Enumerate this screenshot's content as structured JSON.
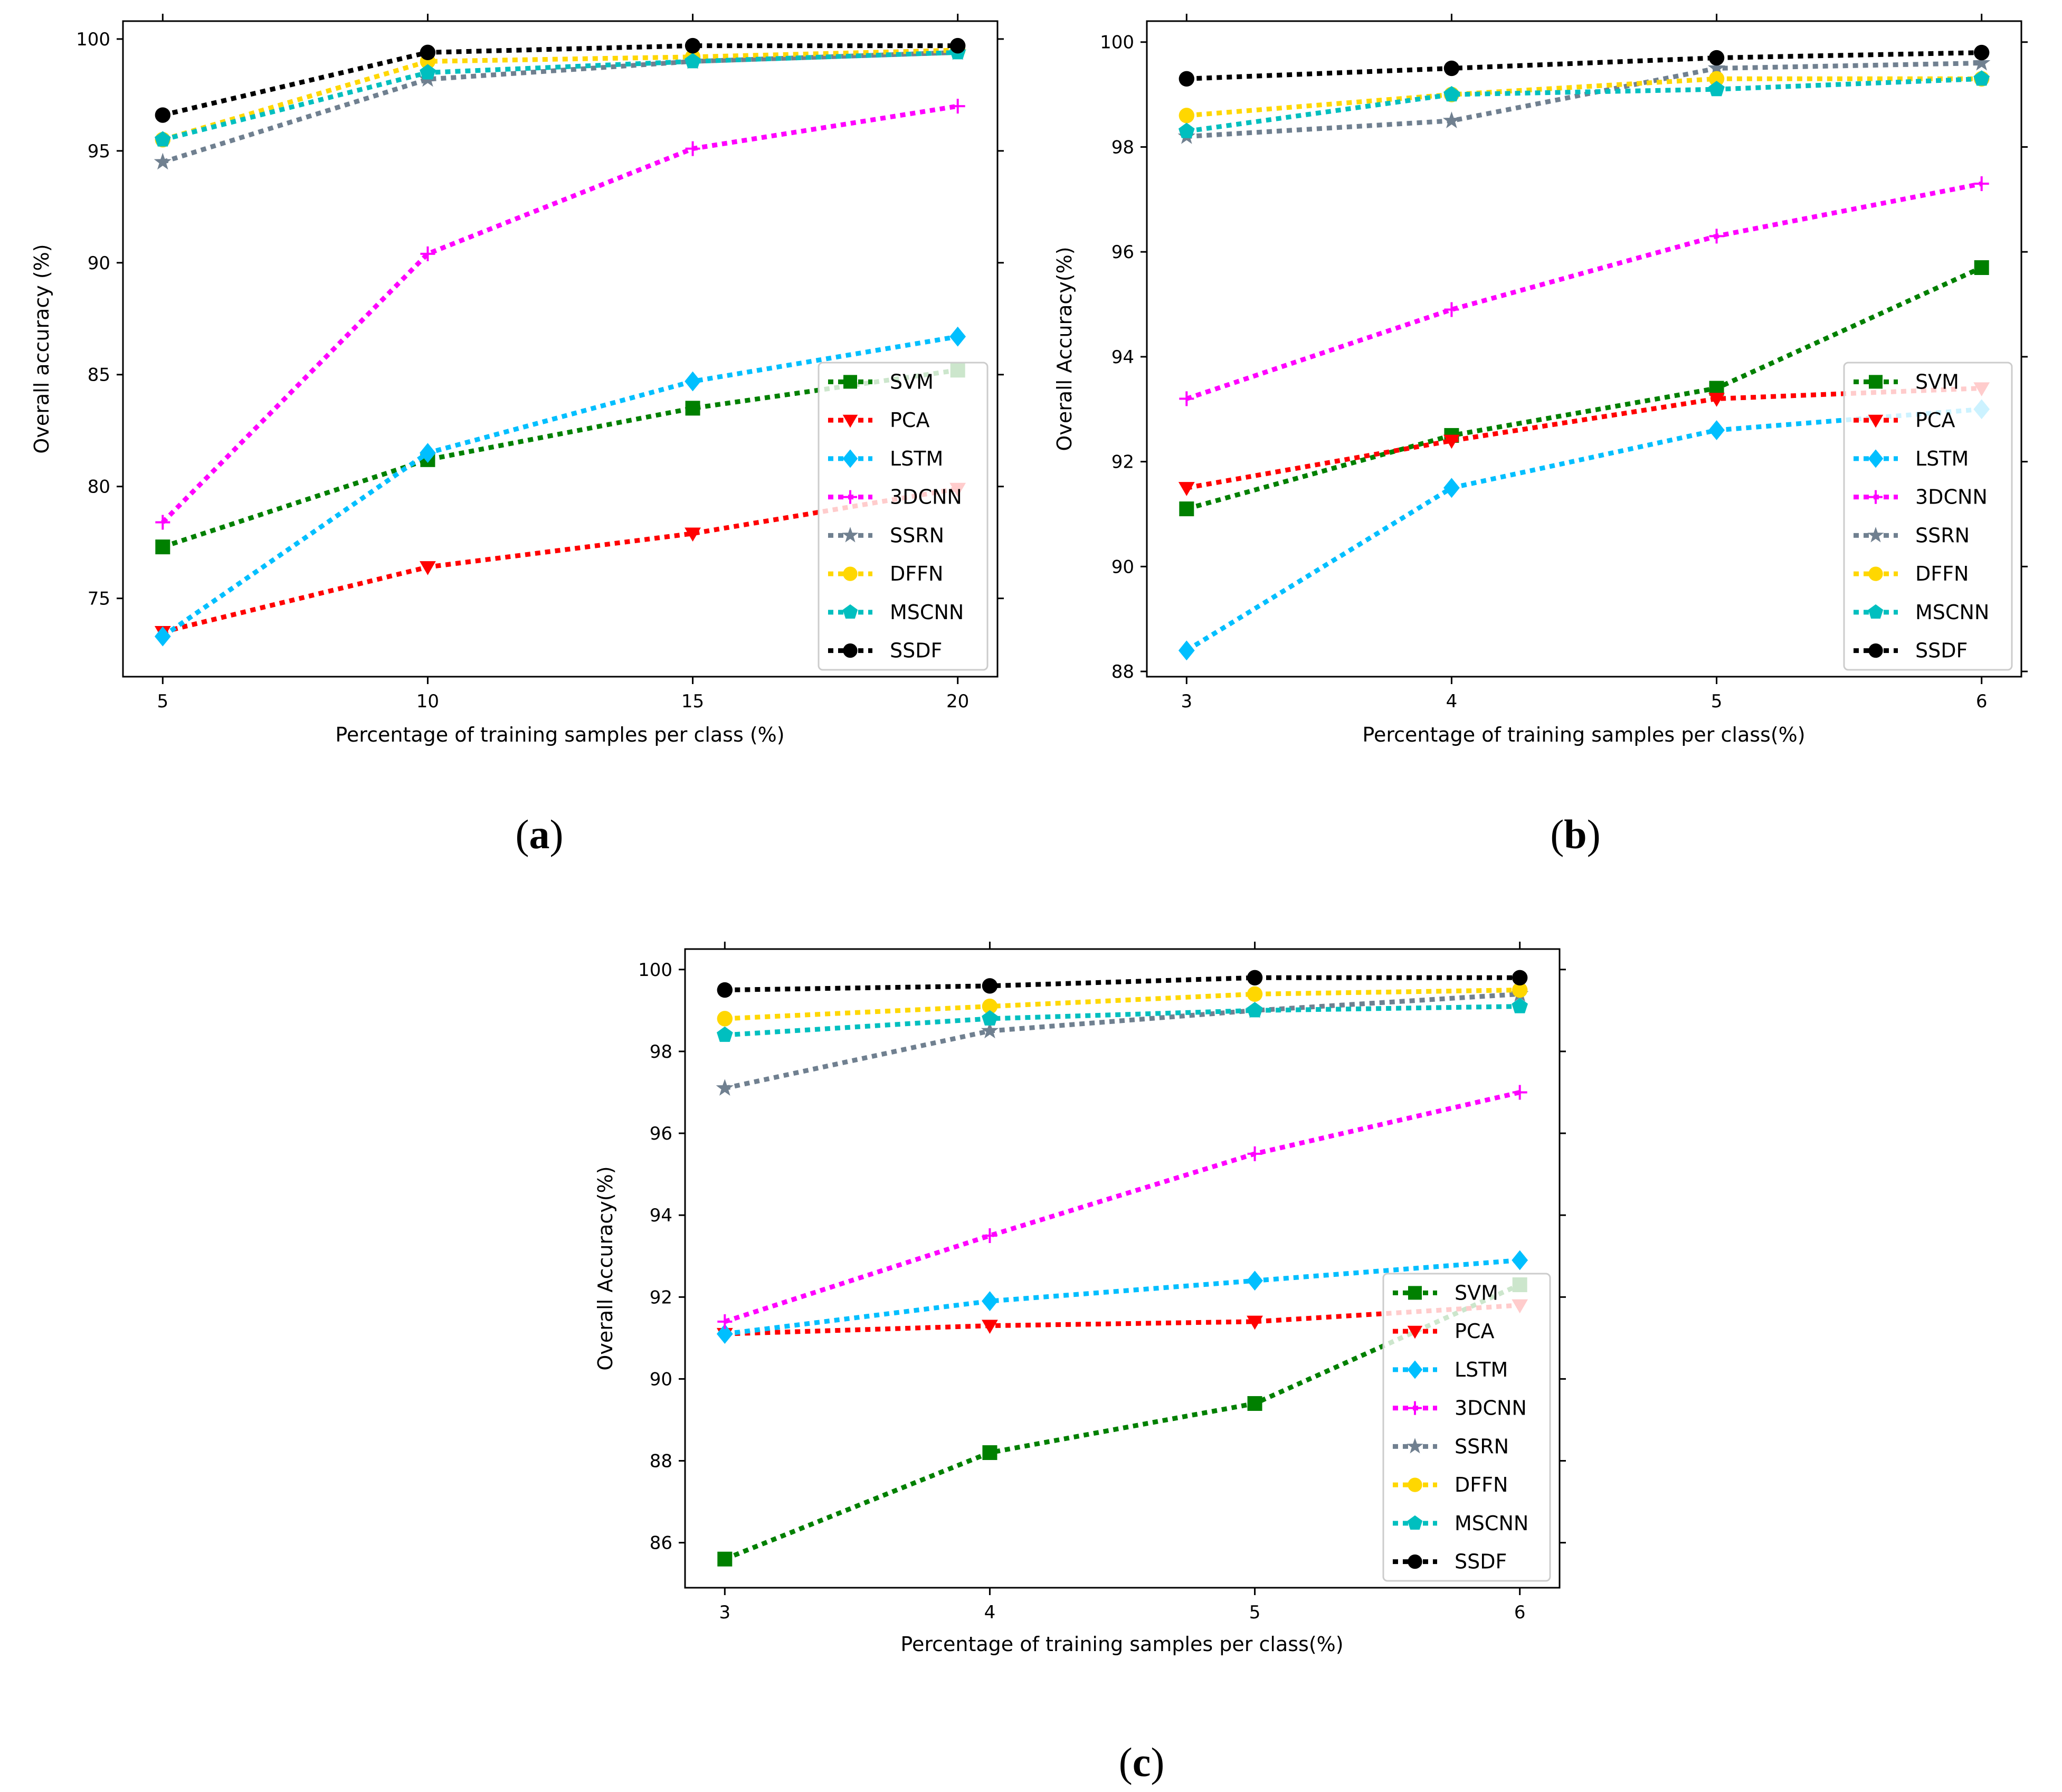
{
  "chart_data": [
    {
      "type": "line",
      "panel_label": "(a)",
      "panel_letter": "a",
      "xlabel": "Percentage of training samples per class (%)",
      "ylabel": "Overall accuracy (%)",
      "x": [
        5,
        10,
        15,
        20
      ],
      "xticks": [
        "5",
        "10",
        "15",
        "20"
      ],
      "xlim": [
        4.25,
        20.75
      ],
      "ylim": [
        71.5,
        100.8
      ],
      "yticks": [
        75,
        80,
        85,
        90,
        95,
        100
      ],
      "yticklabels": [
        "75",
        "80",
        "85",
        "90",
        "95",
        "100"
      ],
      "legend_loc": "lower-right",
      "series": [
        {
          "name": "SVM",
          "color": "#008000",
          "marker": "square",
          "values": [
            77.3,
            81.2,
            83.5,
            85.2
          ]
        },
        {
          "name": "PCA",
          "color": "#ff0000",
          "marker": "triangle-down",
          "values": [
            73.5,
            76.4,
            77.9,
            79.9
          ]
        },
        {
          "name": "LSTM",
          "color": "#00bfff",
          "marker": "diamond",
          "values": [
            73.3,
            81.5,
            84.7,
            86.7
          ]
        },
        {
          "name": "3DCNN",
          "color": "#ff00ff",
          "marker": "plus",
          "values": [
            78.4,
            90.4,
            95.1,
            97.0
          ]
        },
        {
          "name": "SSRN",
          "color": "#708090",
          "marker": "star",
          "values": [
            94.5,
            98.2,
            99.0,
            99.4
          ]
        },
        {
          "name": "DFFN",
          "color": "#ffd700",
          "marker": "circle",
          "values": [
            95.5,
            99.0,
            99.2,
            99.5
          ]
        },
        {
          "name": "MSCNN",
          "color": "#00bfbf",
          "marker": "pentagon",
          "values": [
            95.5,
            98.5,
            99.0,
            99.4
          ]
        },
        {
          "name": "SSDF",
          "color": "#000000",
          "marker": "circle",
          "values": [
            96.6,
            99.4,
            99.7,
            99.7
          ]
        }
      ]
    },
    {
      "type": "line",
      "panel_label": "(b)",
      "panel_letter": "b",
      "xlabel": "Percentage of training samples per class(%)",
      "ylabel": "Overall Accuracy(%)",
      "x": [
        3,
        4,
        5,
        6
      ],
      "xticks": [
        "3",
        "4",
        "5",
        "6"
      ],
      "xlim": [
        2.85,
        6.15
      ],
      "ylim": [
        87.9,
        100.4
      ],
      "yticks": [
        88,
        90,
        92,
        94,
        96,
        98,
        100
      ],
      "yticklabels": [
        "88",
        "90",
        "92",
        "94",
        "96",
        "98",
        "100"
      ],
      "legend_loc": "lower-right",
      "series": [
        {
          "name": "SVM",
          "color": "#008000",
          "marker": "square",
          "values": [
            91.1,
            92.5,
            93.4,
            95.7
          ]
        },
        {
          "name": "PCA",
          "color": "#ff0000",
          "marker": "triangle-down",
          "values": [
            91.5,
            92.4,
            93.2,
            93.4
          ]
        },
        {
          "name": "LSTM",
          "color": "#00bfff",
          "marker": "diamond",
          "values": [
            88.4,
            91.5,
            92.6,
            93.0
          ]
        },
        {
          "name": "3DCNN",
          "color": "#ff00ff",
          "marker": "plus",
          "values": [
            93.2,
            94.9,
            96.3,
            97.3
          ]
        },
        {
          "name": "SSRN",
          "color": "#708090",
          "marker": "star",
          "values": [
            98.2,
            98.5,
            99.5,
            99.6
          ]
        },
        {
          "name": "DFFN",
          "color": "#ffd700",
          "marker": "circle",
          "values": [
            98.6,
            99.0,
            99.3,
            99.3
          ]
        },
        {
          "name": "MSCNN",
          "color": "#00bfbf",
          "marker": "pentagon",
          "values": [
            98.3,
            99.0,
            99.1,
            99.3
          ]
        },
        {
          "name": "SSDF",
          "color": "#000000",
          "marker": "circle",
          "values": [
            99.3,
            99.5,
            99.7,
            99.8
          ]
        }
      ]
    },
    {
      "type": "line",
      "panel_label": "(c)",
      "panel_letter": "c",
      "xlabel": "Percentage of training samples per class(%)",
      "ylabel": "Overall Accuracy(%)",
      "x": [
        3,
        4,
        5,
        6
      ],
      "xticks": [
        "3",
        "4",
        "5",
        "6"
      ],
      "xlim": [
        2.85,
        6.15
      ],
      "ylim": [
        84.9,
        100.5
      ],
      "yticks": [
        86,
        88,
        90,
        92,
        94,
        96,
        98,
        100
      ],
      "yticklabels": [
        "86",
        "88",
        "90",
        "92",
        "94",
        "96",
        "98",
        "100"
      ],
      "legend_loc": "lower-right",
      "series": [
        {
          "name": "SVM",
          "color": "#008000",
          "marker": "square",
          "values": [
            85.6,
            88.2,
            89.4,
            92.3
          ]
        },
        {
          "name": "PCA",
          "color": "#ff0000",
          "marker": "triangle-down",
          "values": [
            91.1,
            91.3,
            91.4,
            91.8
          ]
        },
        {
          "name": "LSTM",
          "color": "#00bfff",
          "marker": "diamond",
          "values": [
            91.1,
            91.9,
            92.4,
            92.9
          ]
        },
        {
          "name": "3DCNN",
          "color": "#ff00ff",
          "marker": "plus",
          "values": [
            91.4,
            93.5,
            95.5,
            97.0
          ]
        },
        {
          "name": "SSRN",
          "color": "#708090",
          "marker": "star",
          "values": [
            97.1,
            98.5,
            99.0,
            99.4
          ]
        },
        {
          "name": "DFFN",
          "color": "#ffd700",
          "marker": "circle",
          "values": [
            98.8,
            99.1,
            99.4,
            99.5
          ]
        },
        {
          "name": "MSCNN",
          "color": "#00bfbf",
          "marker": "pentagon",
          "values": [
            98.4,
            98.8,
            99.0,
            99.1
          ]
        },
        {
          "name": "SSDF",
          "color": "#000000",
          "marker": "circle",
          "values": [
            99.5,
            99.6,
            99.8,
            99.8
          ]
        }
      ]
    }
  ]
}
